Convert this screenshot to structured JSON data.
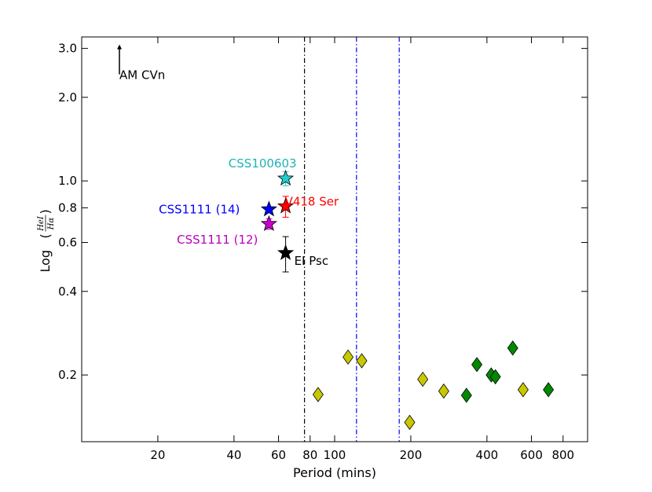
{
  "chart_data": {
    "type": "scatter",
    "x_scale": "log",
    "y_scale": "log",
    "xlabel": "Period (mins)",
    "ylabel_prefix": "Log",
    "ylabel_fraction": {
      "numerator": "HeI",
      "denominator": "Hα"
    },
    "xlim": [
      10,
      1000
    ],
    "ylim": [
      0.115,
      3.3
    ],
    "x_ticks": [
      {
        "value": 20,
        "label": "20"
      },
      {
        "value": 40,
        "label": "40"
      },
      {
        "value": 60,
        "label": "60"
      },
      {
        "value": 80,
        "label": "80"
      },
      {
        "value": 100,
        "label": "100"
      },
      {
        "value": 200,
        "label": "200"
      },
      {
        "value": 400,
        "label": "400"
      },
      {
        "value": 600,
        "label": "600"
      },
      {
        "value": 800,
        "label": "800"
      }
    ],
    "y_ticks": [
      {
        "value": 0.2,
        "label": "0.2"
      },
      {
        "value": 0.4,
        "label": "0.4"
      },
      {
        "value": 0.6,
        "label": "0.6"
      },
      {
        "value": 0.8,
        "label": "0.8"
      },
      {
        "value": 1.0,
        "label": "1.0"
      },
      {
        "value": 2.0,
        "label": "2.0"
      },
      {
        "value": 3.0,
        "label": "3.0"
      }
    ],
    "vertical_lines": [
      {
        "x": 76,
        "color": "#000000",
        "style": "dash-dot"
      },
      {
        "x": 122,
        "color": "#0000ff",
        "style": "dash-dot"
      },
      {
        "x": 180,
        "color": "#0000ff",
        "style": "dash-dot"
      }
    ],
    "series": [
      {
        "name": "Stars",
        "marker": "star",
        "points": [
          {
            "label": "CSS100603",
            "x": 64,
            "y": 1.02,
            "err": 0.06,
            "color": "#22cccc",
            "label_color": "#1fb3b3",
            "label_pos": "above-left"
          },
          {
            "label": "V418 Ser",
            "x": 64,
            "y": 0.81,
            "err": 0.07,
            "color": "#ff0000",
            "label_color": "#ff0000",
            "label_pos": "right"
          },
          {
            "label": "CSS1111 (14)",
            "x": 55,
            "y": 0.79,
            "err": 0,
            "color": "#0000ff",
            "label_color": "#0000ff",
            "label_pos": "left"
          },
          {
            "label": "CSS1111 (12)",
            "x": 55,
            "y": 0.7,
            "err": 0.03,
            "color": "#cc00cc",
            "label_color": "#bb00bb",
            "label_pos": "left-below"
          },
          {
            "label": "EI Psc",
            "x": 64,
            "y": 0.55,
            "err": 0.08,
            "color": "#000000",
            "label_color": "#000000",
            "label_pos": "right-below"
          }
        ]
      },
      {
        "name": "Yellow diamonds",
        "marker": "diamond",
        "color": "#c8c800",
        "points": [
          {
            "x": 86,
            "y": 0.17
          },
          {
            "x": 113,
            "y": 0.232
          },
          {
            "x": 128,
            "y": 0.225
          },
          {
            "x": 198,
            "y": 0.135
          },
          {
            "x": 223,
            "y": 0.193
          },
          {
            "x": 270,
            "y": 0.175
          },
          {
            "x": 556,
            "y": 0.177
          }
        ]
      },
      {
        "name": "Green diamonds",
        "marker": "diamond",
        "color": "#008800",
        "points": [
          {
            "x": 332,
            "y": 0.169
          },
          {
            "x": 365,
            "y": 0.218
          },
          {
            "x": 416,
            "y": 0.2
          },
          {
            "x": 432,
            "y": 0.197
          },
          {
            "x": 506,
            "y": 0.25
          },
          {
            "x": 700,
            "y": 0.177
          }
        ]
      }
    ],
    "arrow_annotation": {
      "label": "AM CVn",
      "x": 14.1,
      "y": 2.5,
      "direction": "up"
    }
  }
}
